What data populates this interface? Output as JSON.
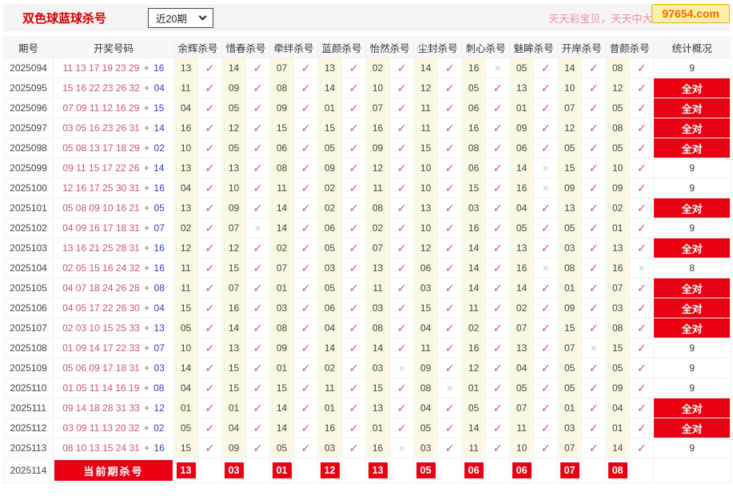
{
  "header": {
    "title": "双色球蓝球杀号",
    "period_select": "近20期",
    "slogan": "天天彩宝贝，天天中大奖!",
    "site_badge": "97654.com"
  },
  "icons": {
    "hit": "✓",
    "miss": "×",
    "chevron_down": "chevron-down"
  },
  "colors": {
    "accent_red": "#e60012",
    "title_red": "#d40000",
    "ball_red": "#d0566e",
    "ball_blue": "#3342b8",
    "check_red": "#d0566e",
    "miss_gray": "#c6c6c6",
    "cell_yellow": "#fbf8e1",
    "slogan_pink": "#f08f9b",
    "badge_orange": "#ff6600",
    "badge_bg": "#fcefa9"
  },
  "table": {
    "columns": [
      "期号",
      "开奖号码",
      "余辉杀号",
      "惜春杀号",
      "牵绊杀号",
      "蓝颜杀号",
      "怡然杀号",
      "尘封杀号",
      "刺心杀号",
      "魅眸杀号",
      "开岸杀号",
      "昔颜杀号",
      "统计概况"
    ],
    "all_correct_label": "全对",
    "rows": [
      {
        "period": "2025094",
        "reds": "11 13 17 19 23 29",
        "blue": "16",
        "kills": [
          "13",
          "14",
          "07",
          "13",
          "02",
          "14",
          "16",
          "05",
          "14",
          "08"
        ],
        "marks": [
          1,
          1,
          1,
          1,
          1,
          1,
          0,
          1,
          1,
          1
        ],
        "stat": "9"
      },
      {
        "period": "2025095",
        "reds": "15 16 22 23 26 32",
        "blue": "04",
        "kills": [
          "11",
          "09",
          "08",
          "14",
          "10",
          "12",
          "05",
          "13",
          "10",
          "12"
        ],
        "marks": [
          1,
          1,
          1,
          1,
          1,
          1,
          1,
          1,
          1,
          1
        ],
        "stat": "全对"
      },
      {
        "period": "2025096",
        "reds": "07 09 11 12 16 29",
        "blue": "15",
        "kills": [
          "04",
          "05",
          "09",
          "01",
          "07",
          "11",
          "06",
          "01",
          "07",
          "05"
        ],
        "marks": [
          1,
          1,
          1,
          1,
          1,
          1,
          1,
          1,
          1,
          1
        ],
        "stat": "全对"
      },
      {
        "period": "2025097",
        "reds": "03 05 16 23 26 31",
        "blue": "14",
        "kills": [
          "16",
          "12",
          "15",
          "15",
          "16",
          "11",
          "16",
          "09",
          "12",
          "08"
        ],
        "marks": [
          1,
          1,
          1,
          1,
          1,
          1,
          1,
          1,
          1,
          1
        ],
        "stat": "全对"
      },
      {
        "period": "2025098",
        "reds": "05 08 13 17 18 29",
        "blue": "02",
        "kills": [
          "10",
          "05",
          "06",
          "05",
          "09",
          "15",
          "08",
          "06",
          "05",
          "05"
        ],
        "marks": [
          1,
          1,
          1,
          1,
          1,
          1,
          1,
          1,
          1,
          1
        ],
        "stat": "全对"
      },
      {
        "period": "2025099",
        "reds": "09 11 15 17 22 26",
        "blue": "14",
        "kills": [
          "13",
          "13",
          "08",
          "09",
          "12",
          "10",
          "06",
          "14",
          "15",
          "10"
        ],
        "marks": [
          1,
          1,
          1,
          1,
          1,
          1,
          1,
          0,
          1,
          1
        ],
        "stat": "9"
      },
      {
        "period": "2025100",
        "reds": "12 16 17 25 30 31",
        "blue": "16",
        "kills": [
          "04",
          "10",
          "11",
          "02",
          "11",
          "10",
          "15",
          "16",
          "09",
          "09"
        ],
        "marks": [
          1,
          1,
          1,
          1,
          1,
          1,
          1,
          0,
          1,
          1
        ],
        "stat": "9"
      },
      {
        "period": "2025101",
        "reds": "05 08 09 10 16 21",
        "blue": "05",
        "kills": [
          "13",
          "09",
          "14",
          "02",
          "08",
          "13",
          "03",
          "04",
          "13",
          "02"
        ],
        "marks": [
          1,
          1,
          1,
          1,
          1,
          1,
          1,
          1,
          1,
          1
        ],
        "stat": "全对"
      },
      {
        "period": "2025102",
        "reds": "04 09 16 17 18 31",
        "blue": "07",
        "kills": [
          "02",
          "07",
          "14",
          "06",
          "02",
          "10",
          "16",
          "05",
          "05",
          "01"
        ],
        "marks": [
          1,
          0,
          1,
          1,
          1,
          1,
          1,
          1,
          1,
          1
        ],
        "stat": "9"
      },
      {
        "period": "2025103",
        "reds": "13 16 21 25 28 31",
        "blue": "16",
        "kills": [
          "12",
          "12",
          "02",
          "05",
          "07",
          "12",
          "14",
          "13",
          "03",
          "13"
        ],
        "marks": [
          1,
          1,
          1,
          1,
          1,
          1,
          1,
          1,
          1,
          1
        ],
        "stat": "全对"
      },
      {
        "period": "2025104",
        "reds": "02 05 15 16 24 32",
        "blue": "16",
        "kills": [
          "11",
          "15",
          "07",
          "03",
          "13",
          "06",
          "14",
          "16",
          "08",
          "16"
        ],
        "marks": [
          1,
          1,
          1,
          1,
          1,
          1,
          1,
          0,
          1,
          0
        ],
        "stat": "8"
      },
      {
        "period": "2025105",
        "reds": "04 07 18 24 26 28",
        "blue": "08",
        "kills": [
          "11",
          "07",
          "01",
          "05",
          "11",
          "03",
          "14",
          "14",
          "01",
          "07"
        ],
        "marks": [
          1,
          1,
          1,
          1,
          1,
          1,
          1,
          1,
          1,
          1
        ],
        "stat": "全对"
      },
      {
        "period": "2025106",
        "reds": "04 05 17 22 26 30",
        "blue": "04",
        "kills": [
          "15",
          "16",
          "03",
          "06",
          "03",
          "15",
          "11",
          "02",
          "09",
          "03"
        ],
        "marks": [
          1,
          1,
          1,
          1,
          1,
          1,
          1,
          1,
          1,
          1
        ],
        "stat": "全对"
      },
      {
        "period": "2025107",
        "reds": "02 03 10 15 25 33",
        "blue": "13",
        "kills": [
          "05",
          "14",
          "08",
          "04",
          "08",
          "04",
          "02",
          "07",
          "15",
          "08"
        ],
        "marks": [
          1,
          1,
          1,
          1,
          1,
          1,
          1,
          1,
          1,
          1
        ],
        "stat": "全对"
      },
      {
        "period": "2025108",
        "reds": "01 09 14 17 22 33",
        "blue": "07",
        "kills": [
          "10",
          "13",
          "09",
          "14",
          "14",
          "11",
          "16",
          "13",
          "07",
          "15"
        ],
        "marks": [
          1,
          1,
          1,
          1,
          1,
          1,
          1,
          1,
          0,
          1
        ],
        "stat": "9"
      },
      {
        "period": "2025109",
        "reds": "05 06 09 17 18 31",
        "blue": "03",
        "kills": [
          "14",
          "15",
          "01",
          "02",
          "03",
          "09",
          "12",
          "04",
          "05",
          "05"
        ],
        "marks": [
          1,
          1,
          1,
          1,
          0,
          1,
          1,
          1,
          1,
          1
        ],
        "stat": "9"
      },
      {
        "period": "2025110",
        "reds": "01 05 11 14 16 19",
        "blue": "08",
        "kills": [
          "04",
          "15",
          "15",
          "11",
          "15",
          "08",
          "01",
          "05",
          "05",
          "09"
        ],
        "marks": [
          1,
          1,
          1,
          1,
          1,
          0,
          1,
          1,
          1,
          1
        ],
        "stat": "9"
      },
      {
        "period": "2025111",
        "reds": "09 14 18 28 31 33",
        "blue": "12",
        "kills": [
          "01",
          "01",
          "14",
          "01",
          "13",
          "04",
          "05",
          "07",
          "01",
          "04"
        ],
        "marks": [
          1,
          1,
          1,
          1,
          1,
          1,
          1,
          1,
          1,
          1
        ],
        "stat": "全对"
      },
      {
        "period": "2025112",
        "reds": "03 09 11 13 20 32",
        "blue": "02",
        "kills": [
          "05",
          "04",
          "14",
          "16",
          "01",
          "05",
          "14",
          "11",
          "03",
          "01"
        ],
        "marks": [
          1,
          1,
          1,
          1,
          1,
          1,
          1,
          1,
          1,
          1
        ],
        "stat": "全对"
      },
      {
        "period": "2025113",
        "reds": "08 10 13 15 24 31",
        "blue": "16",
        "kills": [
          "15",
          "09",
          "05",
          "03",
          "16",
          "03",
          "11",
          "10",
          "07",
          "14"
        ],
        "marks": [
          1,
          1,
          1,
          1,
          0,
          1,
          1,
          1,
          1,
          1
        ],
        "stat": "9"
      }
    ],
    "current": {
      "period": "2025114",
      "label": "当前期杀号",
      "kills": [
        "13",
        "03",
        "01",
        "12",
        "13",
        "05",
        "06",
        "06",
        "07",
        "08"
      ]
    }
  }
}
